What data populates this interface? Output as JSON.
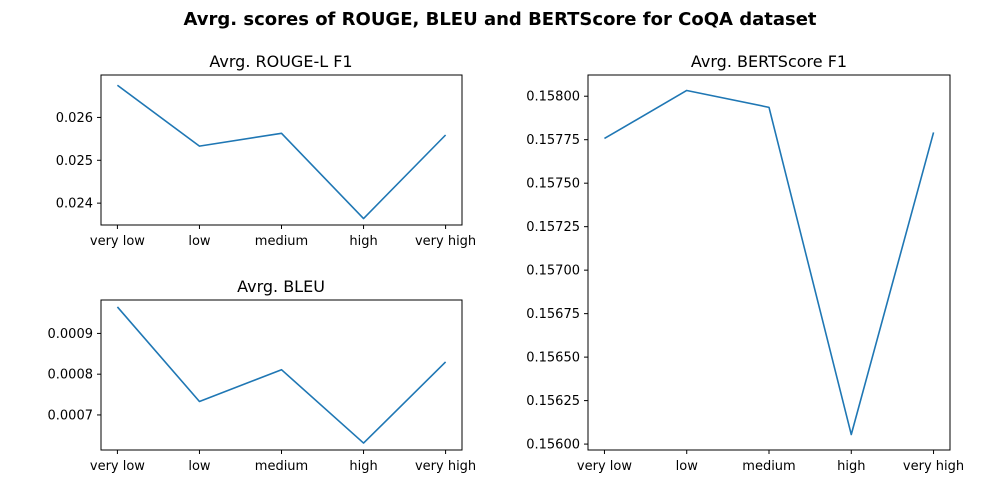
{
  "figure": {
    "title": "Avrg. scores of ROUGE, BLEU and BERTScore for CoQA dataset"
  },
  "colors": {
    "line": "#1f77b4"
  },
  "chart_data": [
    {
      "id": "rouge",
      "type": "line",
      "title": "Avrg. ROUGE-L F1",
      "categories": [
        "very low",
        "low",
        "medium",
        "high",
        "very high"
      ],
      "values": [
        0.02675,
        0.02533,
        0.02563,
        0.02364,
        0.02559
      ],
      "ylim": [
        0.02349,
        0.02699
      ],
      "yticks": [
        0.024,
        0.025,
        0.026
      ],
      "ytick_labels": [
        "0.024",
        "0.025",
        "0.026"
      ],
      "grid": false
    },
    {
      "id": "bleu",
      "type": "line",
      "title": "Avrg. BLEU",
      "categories": [
        "very low",
        "low",
        "medium",
        "high",
        "very high"
      ],
      "values": [
        0.000965,
        0.000733,
        0.000811,
        0.000631,
        0.00083
      ],
      "ylim": [
        0.000614,
        0.000982
      ],
      "yticks": [
        0.0007,
        0.0008,
        0.0009
      ],
      "ytick_labels": [
        "0.0007",
        "0.0008",
        "0.0009"
      ],
      "grid": false
    },
    {
      "id": "bertscore",
      "type": "line",
      "title": "Avrg. BERTScore F1",
      "categories": [
        "very low",
        "low",
        "medium",
        "high",
        "very high"
      ],
      "values": [
        0.157757,
        0.158033,
        0.157936,
        0.156055,
        0.157792
      ],
      "ylim": [
        0.155966,
        0.158122
      ],
      "yticks": [
        0.156,
        0.15625,
        0.1565,
        0.15675,
        0.157,
        0.15725,
        0.1575,
        0.15775,
        0.158
      ],
      "ytick_labels": [
        "0.15600",
        "0.15625",
        "0.15650",
        "0.15675",
        "0.15700",
        "0.15725",
        "0.15750",
        "0.15775",
        "0.15800"
      ],
      "grid": false
    }
  ]
}
